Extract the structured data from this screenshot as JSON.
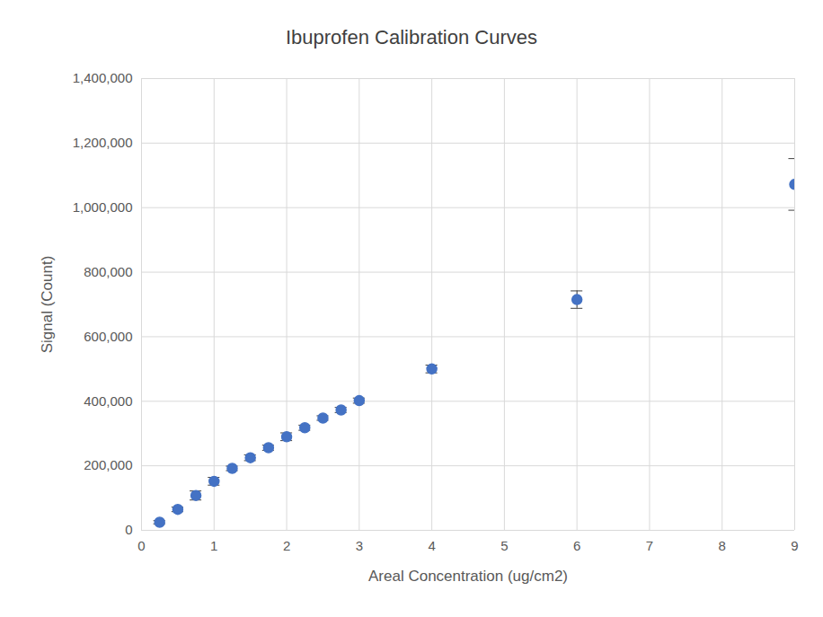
{
  "chart_data": {
    "type": "scatter",
    "title": "Ibuprofen Calibration Curves",
    "x_label": "Areal Concentration (ug/cm2)",
    "y_label": "Signal (Count)",
    "x": [
      0.25,
      0.5,
      0.75,
      1,
      1.25,
      1.5,
      1.75,
      2,
      2.25,
      2.5,
      2.75,
      3,
      4,
      6,
      9
    ],
    "values": [
      25000,
      65000,
      108000,
      152000,
      192000,
      225000,
      256000,
      290000,
      318000,
      348000,
      373000,
      402000,
      500000,
      715000,
      1072000
    ],
    "errors": [
      5000,
      7000,
      14000,
      12000,
      7000,
      9000,
      8000,
      12000,
      8000,
      7000,
      8000,
      8000,
      12000,
      27000,
      80000
    ],
    "color": "#4472c4",
    "marker": "circle",
    "xlim": [
      0,
      9
    ],
    "xticks": [
      0,
      1,
      2,
      3,
      4,
      5,
      6,
      7,
      8,
      9
    ],
    "ylim": [
      0,
      1400000
    ],
    "yticks": [
      0,
      {
        "value": 200000,
        "label": "200,000"
      },
      {
        "value": 400000,
        "label": "400,000"
      },
      {
        "value": 600000,
        "label": "600,000"
      },
      {
        "value": 800000,
        "label": "800,000"
      },
      {
        "value": 1000000,
        "label": "1,000,000"
      },
      {
        "value": 1200000,
        "label": "1,200,000"
      },
      {
        "value": 1400000,
        "label": "1,400,000"
      }
    ],
    "grid": true
  }
}
